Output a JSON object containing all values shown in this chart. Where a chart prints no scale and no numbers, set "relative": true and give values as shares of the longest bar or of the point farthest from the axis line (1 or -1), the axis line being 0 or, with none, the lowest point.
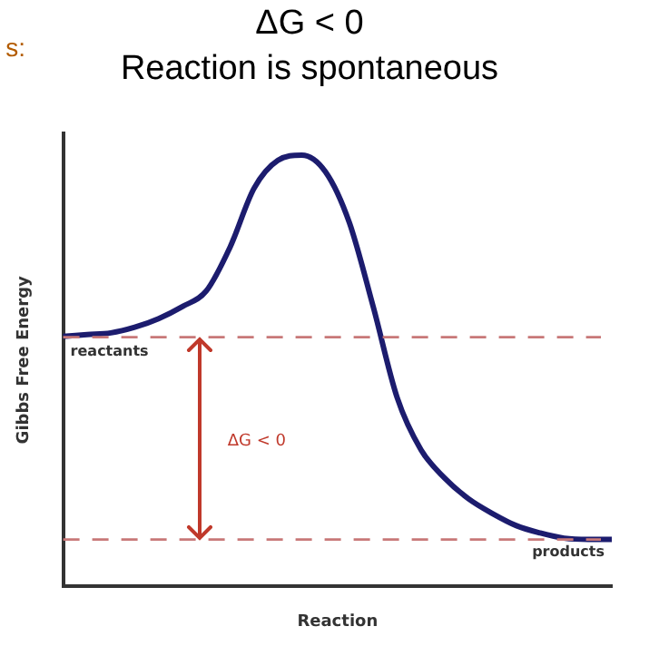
{
  "chart_data": {
    "type": "line",
    "title": "ΔG < 0",
    "subtitle": "Reaction is spontaneous",
    "xlabel": "Reaction",
    "ylabel": "Gibbs Free Energy",
    "relative": true,
    "tick_labels": false,
    "grid": false,
    "legend": false,
    "marker": "none",
    "line_style": "solid",
    "categories": [
      null,
      null,
      null,
      null,
      null,
      null,
      null,
      null,
      null,
      null,
      null,
      null,
      null,
      null,
      null,
      null,
      null,
      null,
      null,
      null,
      null,
      null,
      null,
      null
    ],
    "series": [
      {
        "color": "#1c1c6e",
        "values": [
          0.58,
          0.584,
          0.588,
          0.601,
          0.621,
          0.649,
          0.685,
          0.787,
          0.923,
          0.988,
          1,
          0.961,
          0.843,
          0.648,
          0.438,
          0.317,
          0.251,
          0.203,
          0.169,
          0.141,
          0.124,
          0.112,
          0.109,
          0.109
        ]
      }
    ],
    "ref_lines": [
      {
        "axis": "y",
        "value": 0.578,
        "label": "reactants",
        "color": "#c87878",
        "line_style": "dashed"
      },
      {
        "axis": "y",
        "value": 0.109,
        "label": "products",
        "color": "#c87878",
        "line_style": "dashed"
      }
    ],
    "annotations": [
      "s:",
      "ΔG < 0"
    ]
  }
}
